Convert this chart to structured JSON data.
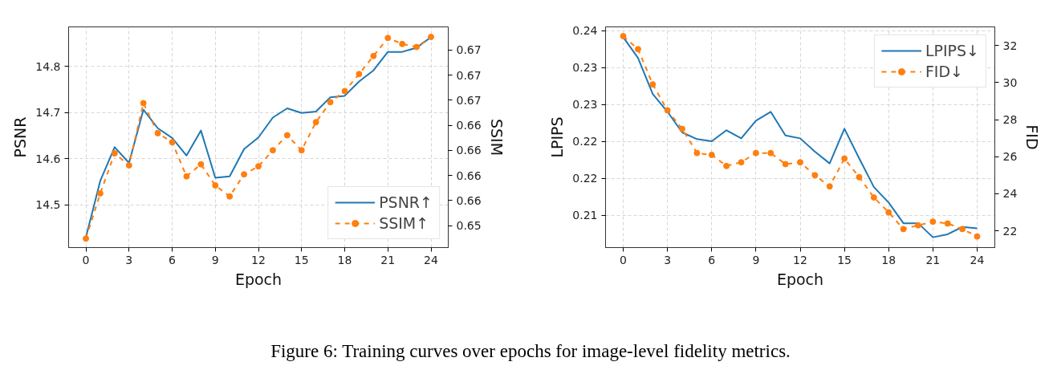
{
  "chart_data": [
    {
      "type": "line",
      "xlabel": "Epoch",
      "ylabel": "PSNR",
      "y2label": "SSIM",
      "x": [
        0,
        1,
        2,
        3,
        4,
        5,
        6,
        7,
        8,
        9,
        10,
        11,
        12,
        13,
        14,
        15,
        16,
        17,
        18,
        19,
        20,
        21,
        22,
        23,
        24
      ],
      "xlim": [
        -1.2,
        25.2
      ],
      "xticks": [
        0,
        3,
        6,
        9,
        12,
        15,
        18,
        21,
        24
      ],
      "ylim": [
        14.408,
        14.885
      ],
      "yticks": [
        14.5,
        14.6,
        14.7,
        14.8
      ],
      "y2lim": [
        0.6503,
        0.6723
      ],
      "y2ticks": [
        {
          "value": 0.6525,
          "label": "0.65"
        },
        {
          "value": 0.655,
          "label": "0.66"
        },
        {
          "value": 0.6575,
          "label": "0.66"
        },
        {
          "value": 0.66,
          "label": "0.66"
        },
        {
          "value": 0.6625,
          "label": "0.66"
        },
        {
          "value": 0.665,
          "label": "0.67"
        },
        {
          "value": 0.6675,
          "label": "0.67"
        },
        {
          "value": 0.67,
          "label": "0.67"
        }
      ],
      "grid": true,
      "legend": "bottom right",
      "series": [
        {
          "name": "PSNR↑",
          "color": "#1f77b4",
          "line_style": "solid",
          "values": [
            14.43,
            14.552,
            14.625,
            14.591,
            14.706,
            14.666,
            14.645,
            14.607,
            14.661,
            14.559,
            14.562,
            14.621,
            14.646,
            14.689,
            14.709,
            14.699,
            14.702,
            14.733,
            14.736,
            14.767,
            14.791,
            14.831,
            14.831,
            14.84,
            14.863
          ]
        },
        {
          "name": "SSIM↑",
          "color": "#ff7f0e",
          "line_style": "dashed",
          "marker": "circle",
          "axis": "y2",
          "values": [
            0.6512,
            0.6557,
            0.6597,
            0.6585,
            0.6647,
            0.6617,
            0.6608,
            0.6574,
            0.6586,
            0.6565,
            0.6554,
            0.6576,
            0.6584,
            0.66,
            0.6615,
            0.66,
            0.6628,
            0.6648,
            0.6659,
            0.6676,
            0.6694,
            0.6712,
            0.6706,
            0.6703,
            0.6713
          ]
        }
      ],
      "annotations": [
        "Figure 6: Training curves over epochs for image-level fidelity metrics."
      ]
    },
    {
      "type": "line",
      "xlabel": "Epoch",
      "ylabel": "LPIPS",
      "y2label": "FID",
      "x": [
        0,
        1,
        2,
        3,
        4,
        5,
        6,
        7,
        8,
        9,
        10,
        11,
        12,
        13,
        14,
        15,
        16,
        17,
        18,
        19,
        20,
        21,
        22,
        23,
        24
      ],
      "xlim": [
        -1.2,
        25.2
      ],
      "xticks": [
        0,
        3,
        6,
        9,
        12,
        15,
        18,
        21,
        24
      ],
      "ylim": [
        0.2106,
        0.2405
      ],
      "yticks": [
        {
          "value": 0.215,
          "label": "0.21"
        },
        {
          "value": 0.22,
          "label": "0.22"
        },
        {
          "value": 0.225,
          "label": "0.22"
        },
        {
          "value": 0.23,
          "label": "0.23"
        },
        {
          "value": 0.235,
          "label": "0.23"
        },
        {
          "value": 0.24,
          "label": "0.24"
        }
      ],
      "y2lim": [
        21.1,
        33.0
      ],
      "y2ticks": [
        22,
        24,
        26,
        28,
        30,
        32
      ],
      "grid": true,
      "legend": "top right",
      "series": [
        {
          "name": "LPIPS↓",
          "color": "#1f77b4",
          "line_style": "solid",
          "values": [
            0.2391,
            0.2363,
            0.2314,
            0.229,
            0.2262,
            0.2253,
            0.225,
            0.2265,
            0.2254,
            0.2278,
            0.229,
            0.2258,
            0.2254,
            0.2236,
            0.222,
            0.2267,
            0.2227,
            0.2188,
            0.2167,
            0.2139,
            0.2139,
            0.212,
            0.2124,
            0.2134,
            0.2132
          ]
        },
        {
          "name": "FID↓",
          "color": "#ff7f0e",
          "line_style": "dashed",
          "marker": "circle",
          "axis": "y2",
          "values": [
            32.5,
            31.8,
            29.9,
            28.5,
            27.5,
            26.2,
            26.1,
            25.5,
            25.7,
            26.2,
            26.2,
            25.6,
            25.7,
            25.0,
            24.4,
            25.9,
            24.9,
            23.8,
            23.0,
            22.1,
            22.3,
            22.5,
            22.4,
            22.1,
            21.7
          ]
        }
      ]
    }
  ]
}
